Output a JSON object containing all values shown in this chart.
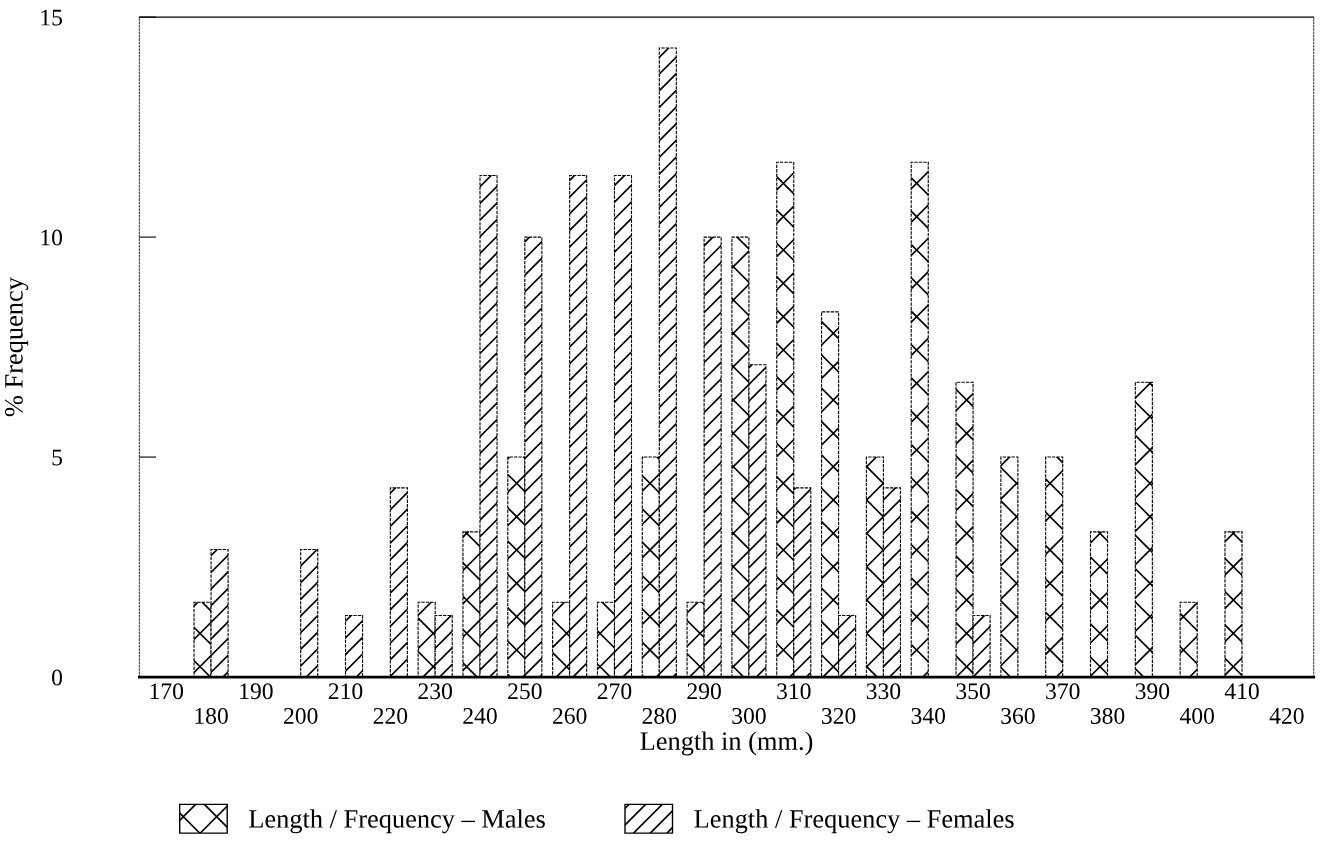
{
  "chart_data": {
    "type": "bar",
    "ylabel": "% Frequency",
    "xlabel": "Length in (mm.)",
    "categories": [
      "170",
      "180",
      "190",
      "200",
      "210",
      "220",
      "230",
      "240",
      "250",
      "260",
      "270",
      "280",
      "290",
      "300",
      "310",
      "320",
      "330",
      "340",
      "350",
      "360",
      "370",
      "380",
      "390",
      "400",
      "410",
      "420"
    ],
    "series": [
      {
        "name": "Length / Frequency – Males",
        "color": "#000000",
        "values": [
          null,
          1.7,
          null,
          null,
          null,
          null,
          1.7,
          3.3,
          5,
          1.7,
          1.7,
          5,
          1.7,
          10,
          11.7,
          8.3,
          5,
          11.7,
          6.7,
          5,
          5,
          3.3,
          6.7,
          1.7,
          3.3,
          null
        ]
      },
      {
        "name": "Length / Frequency – Females",
        "color": "#000000",
        "values": [
          null,
          2.9,
          null,
          2.9,
          1.4,
          4.3,
          1.4,
          11.4,
          10,
          11.4,
          11.4,
          14.3,
          10,
          7.1,
          4.3,
          1.4,
          4.3,
          null,
          1.4,
          null,
          null,
          null,
          null,
          null,
          null,
          null
        ]
      }
    ],
    "ylim": [
      0,
      15
    ],
    "yticks": [
      0,
      5,
      10,
      15
    ],
    "grid": false,
    "legend": "bottom"
  }
}
